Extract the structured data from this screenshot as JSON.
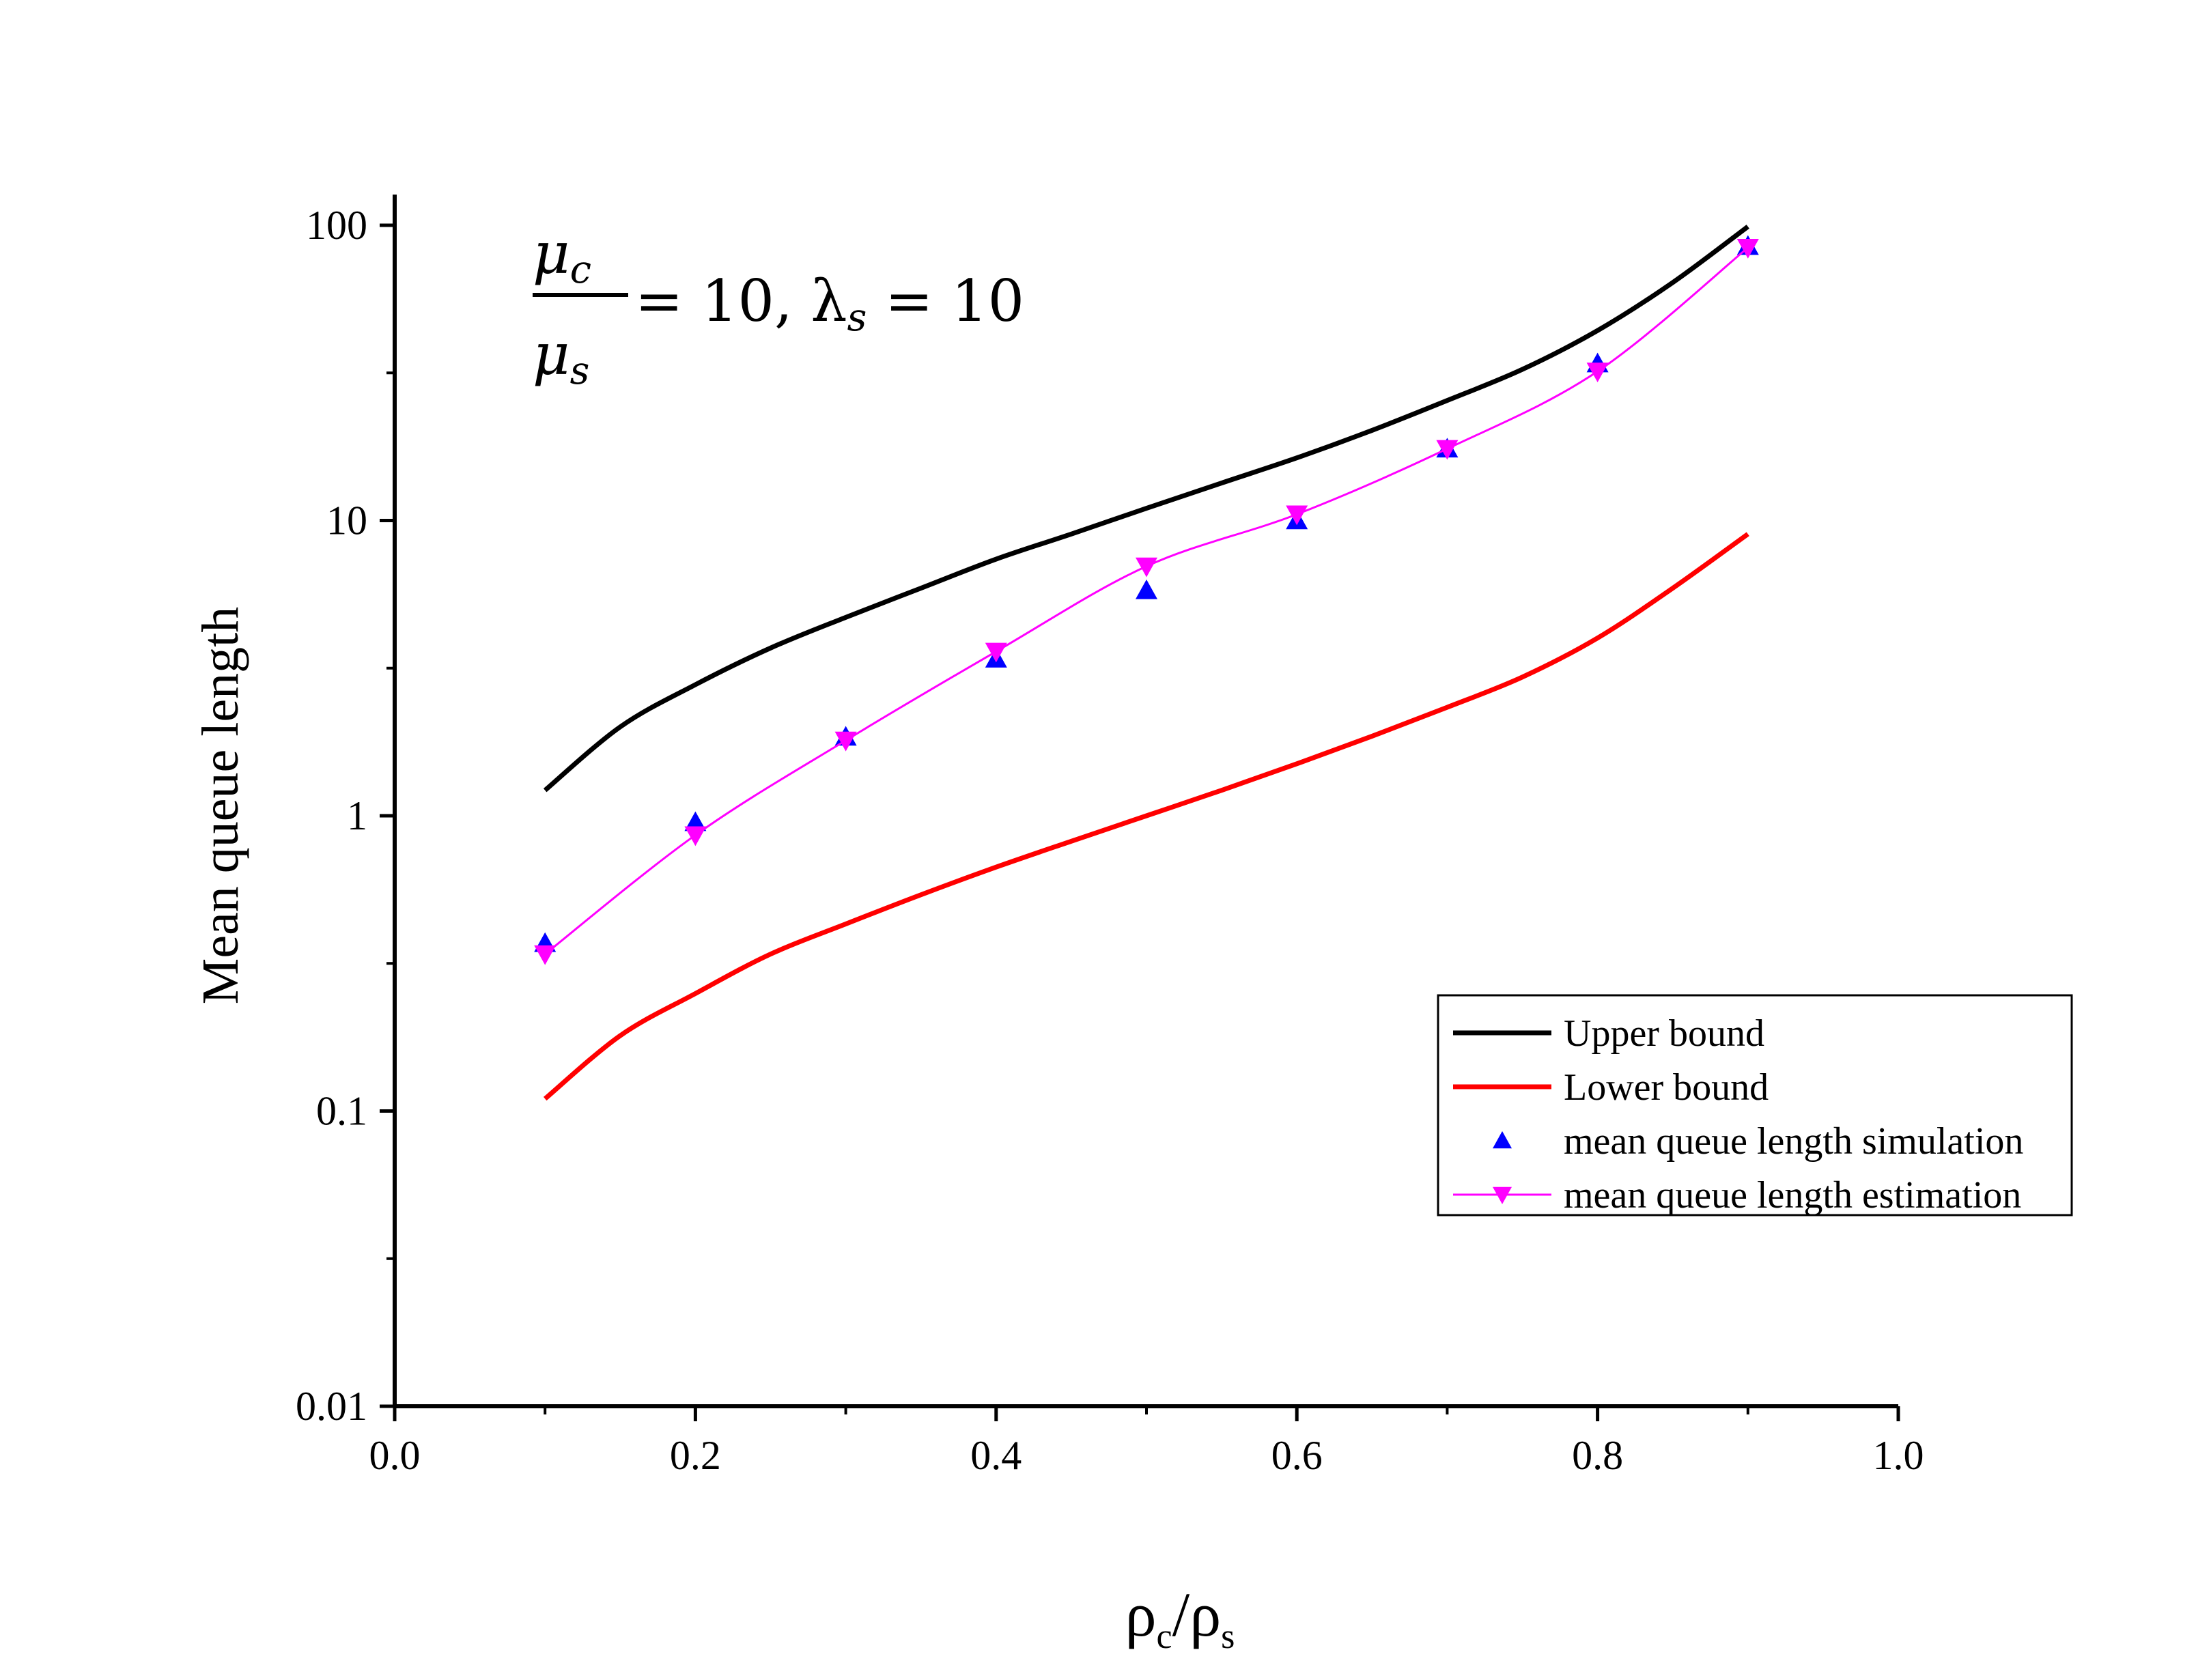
{
  "chart_data": {
    "type": "line",
    "annotation": {
      "numerator": "μ",
      "numerator_sub": "c",
      "denominator": "μ",
      "denominator_sub": "s",
      "rest_a": "= 10, λ",
      "rest_sub": "s",
      "rest_b": " = 10"
    },
    "xlabel": {
      "rho1": "ρ",
      "sub1": "c",
      "slash": "/",
      "rho2": "ρ",
      "sub2": "s"
    },
    "ylabel": "Mean queue length",
    "xlim": [
      0.0,
      1.0
    ],
    "ylim": [
      0.01,
      100
    ],
    "yscale": "log",
    "x_ticks": [
      "0.0",
      "0.2",
      "0.4",
      "0.6",
      "0.8",
      "1.0"
    ],
    "y_ticks": [
      "0.01",
      "0.1",
      "1",
      "10",
      "100"
    ],
    "legend_position": "bottom-right",
    "series": [
      {
        "name": "Upper bound",
        "style": "line",
        "color": "#000000",
        "x": [
          0.1,
          0.15,
          0.2,
          0.25,
          0.3,
          0.35,
          0.4,
          0.45,
          0.5,
          0.55,
          0.6,
          0.65,
          0.7,
          0.75,
          0.8,
          0.85,
          0.9
        ],
        "y": [
          1.22,
          2.0,
          2.78,
          3.7,
          4.7,
          5.9,
          7.4,
          9.0,
          11.0,
          13.4,
          16.3,
          20.2,
          25.5,
          32.5,
          44.0,
          64.0,
          99.0
        ]
      },
      {
        "name": "Lower bound",
        "style": "line",
        "color": "#ff0000",
        "x": [
          0.1,
          0.15,
          0.2,
          0.25,
          0.3,
          0.35,
          0.4,
          0.45,
          0.5,
          0.55,
          0.6,
          0.65,
          0.7,
          0.75,
          0.8,
          0.85,
          0.9
        ],
        "y": [
          0.11,
          0.18,
          0.25,
          0.34,
          0.43,
          0.54,
          0.67,
          0.82,
          1.0,
          1.22,
          1.5,
          1.86,
          2.33,
          2.95,
          4.0,
          5.9,
          9.0
        ]
      },
      {
        "name": "mean queue length simulation",
        "style": "marker-up",
        "color": "#0000ff",
        "x": [
          0.1,
          0.2,
          0.3,
          0.4,
          0.5,
          0.6,
          0.7,
          0.8,
          0.9
        ],
        "y": [
          0.37,
          0.95,
          1.85,
          3.4,
          5.8,
          10.0,
          17.5,
          34.0,
          85.0
        ]
      },
      {
        "name": "mean queue length estimation",
        "style": "line-marker-down",
        "color": "#ff00ff",
        "x": [
          0.1,
          0.2,
          0.3,
          0.4,
          0.5,
          0.6,
          0.7,
          0.8,
          0.9
        ],
        "y": [
          0.34,
          0.86,
          1.8,
          3.6,
          7.0,
          10.5,
          17.5,
          32.0,
          84.0
        ]
      }
    ]
  }
}
